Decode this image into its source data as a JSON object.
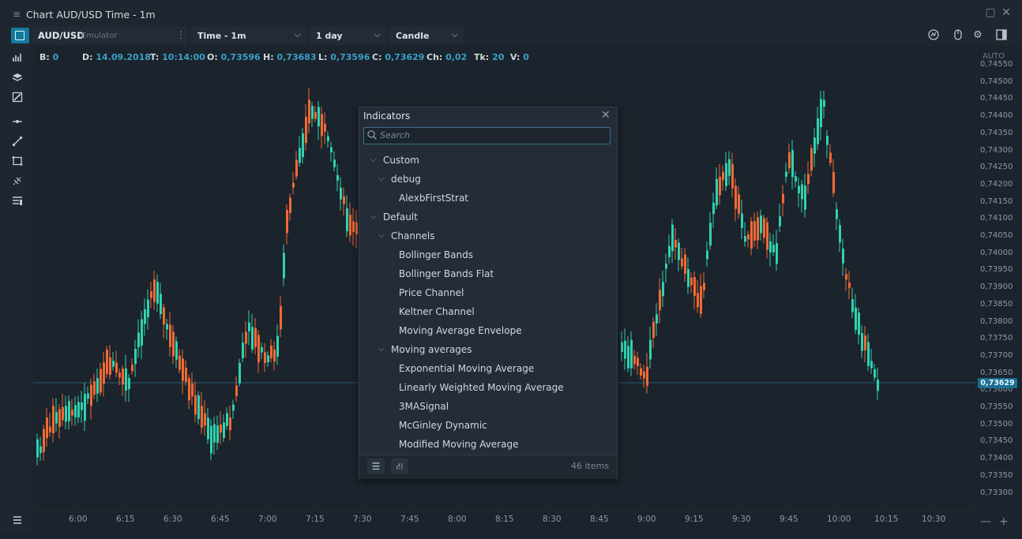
{
  "window": {
    "title": "Chart AUD/USD Time - 1m"
  },
  "toolbar": {
    "symbol": "AUD/USD",
    "connection": "Emulator",
    "aggregation": "Time - 1m",
    "period": "1 day",
    "chart_style": "Candle"
  },
  "info_bar": {
    "b_label": "B:",
    "b_value": "0",
    "d_label": "D:",
    "d_value": "14.09.2018",
    "t_label": "T:",
    "t_value": "10:14:00",
    "o_label": "O:",
    "o_value": "0,73596",
    "h_label": "H:",
    "h_value": "0,73683",
    "l_label": "L:",
    "l_value": "0,73596",
    "c_label": "C:",
    "c_value": "0,73629",
    "ch_label": "Ch:",
    "ch_value": "0,02",
    "tk_label": "Tk:",
    "tk_value": "20",
    "v_label": "V:",
    "v_value": "0"
  },
  "price_axis": {
    "auto_label": "AUTO",
    "labels": [
      "0,74550",
      "0,74500",
      "0,74450",
      "0,74400",
      "0,74350",
      "0,74300",
      "0,74250",
      "0,74200",
      "0,74150",
      "0,74100",
      "0,74050",
      "0,74000",
      "0,73950",
      "0,73900",
      "0,73850",
      "0,73800",
      "0,73750",
      "0,73700",
      "0,73650",
      "0,73600",
      "0,73550",
      "0,73500",
      "0,73450",
      "0,73400",
      "0,73350",
      "0,73300"
    ],
    "current_price": "0,73629"
  },
  "time_axis": {
    "labels": [
      "6:00",
      "6:15",
      "6:30",
      "6:45",
      "7:00",
      "7:15",
      "7:30",
      "7:45",
      "8:00",
      "8:15",
      "8:30",
      "8:45",
      "9:00",
      "9:15",
      "9:30",
      "9:45",
      "10:00",
      "10:15",
      "10:30"
    ]
  },
  "colors": {
    "up": "#2fd3b0",
    "down": "#f06a35",
    "accent": "#1b6f95",
    "background": "#1b232c"
  },
  "sidebar_icons": [
    "bar-chart-icon",
    "layers-icon",
    "drawing-tools-icon",
    "horizontal-line-icon",
    "trend-line-icon",
    "rectangle-icon",
    "fibonacci-icon",
    "indicator-list-icon"
  ],
  "indicators_panel": {
    "title": "Indicators",
    "search_placeholder": "Search",
    "items": [
      {
        "label": "Custom",
        "level": 0,
        "expanded": true
      },
      {
        "label": "debug",
        "level": 1,
        "expanded": true
      },
      {
        "label": "AlexbFirstStrat",
        "level": 2
      },
      {
        "label": "Default",
        "level": 0,
        "expanded": true
      },
      {
        "label": "Channels",
        "level": 1,
        "expanded": true
      },
      {
        "label": "Bollinger Bands",
        "level": 2
      },
      {
        "label": "Bollinger Bands Flat",
        "level": 2
      },
      {
        "label": "Price Channel",
        "level": 2
      },
      {
        "label": "Keltner Channel",
        "level": 2
      },
      {
        "label": "Moving Average Envelope",
        "level": 2
      },
      {
        "label": "Moving averages",
        "level": 1,
        "expanded": true
      },
      {
        "label": "Exponential Moving Average",
        "level": 2
      },
      {
        "label": "Linearly Weighted Moving Average",
        "level": 2
      },
      {
        "label": "3MASignal",
        "level": 2
      },
      {
        "label": "McGinley Dynamic",
        "level": 2
      },
      {
        "label": "Modified Moving Average",
        "level": 2
      }
    ],
    "count": "46 items"
  }
}
